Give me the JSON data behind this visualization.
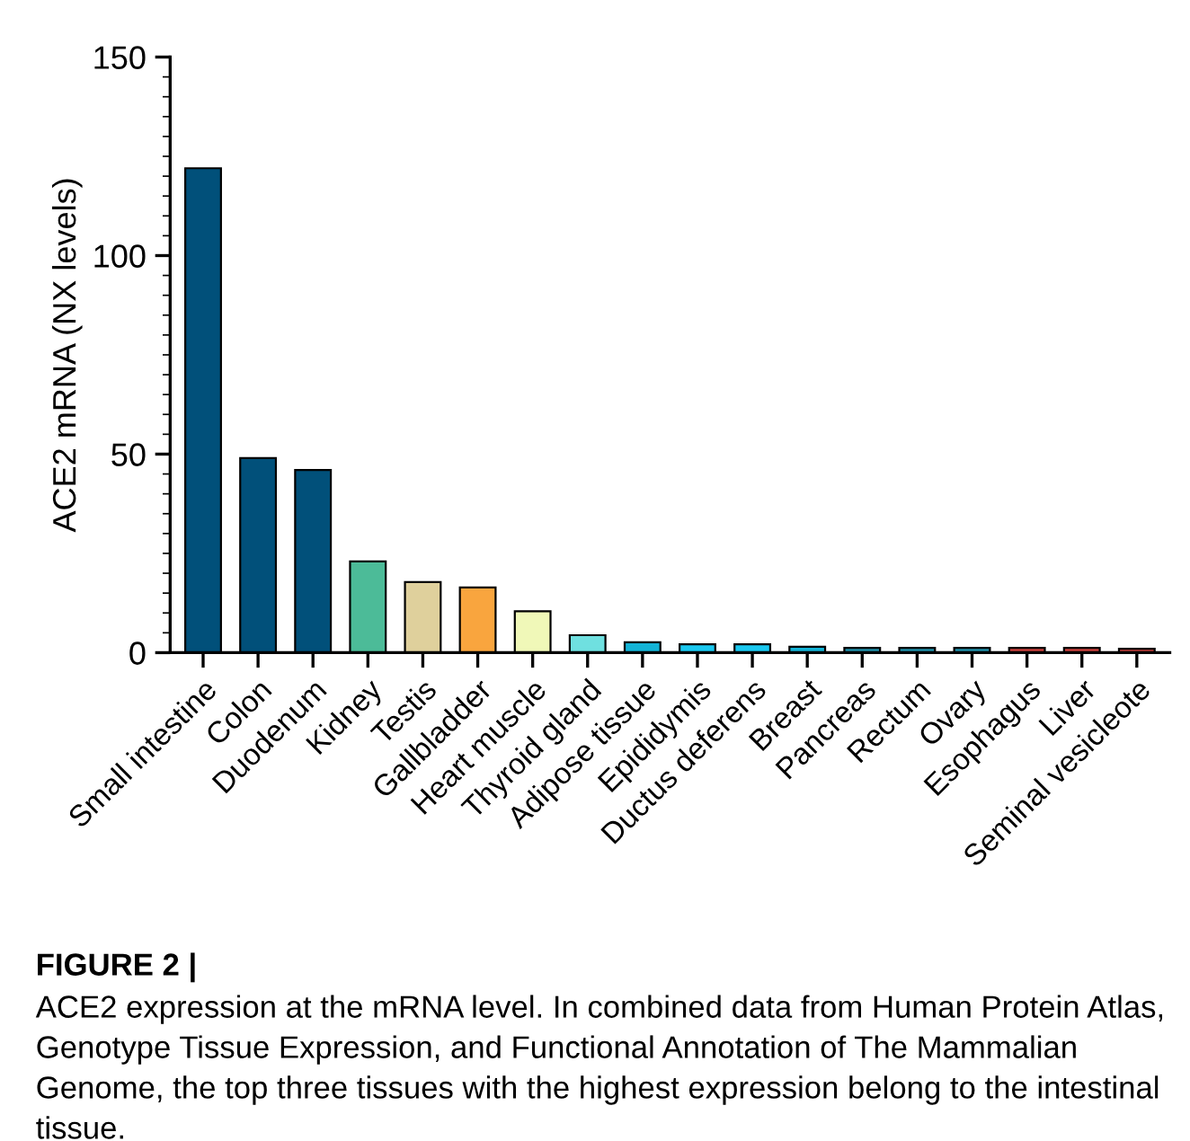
{
  "chart_data": {
    "type": "bar",
    "categories": [
      "Small intestine",
      "Colon",
      "Duodenum",
      "Kidney",
      "Testis",
      "Gallbladder",
      "Heart muscle",
      "Thyroid gland",
      "Adipose tissue",
      "Epididymis",
      "Ductus deferens",
      "Breast",
      "Pancreas",
      "Rectum",
      "Ovary",
      "Esophagus",
      "Liver",
      "Seminal vesicleote"
    ],
    "values": [
      122,
      49,
      46,
      23,
      17.8,
      16.4,
      10.4,
      4.4,
      2.6,
      2.1,
      2.1,
      1.5,
      1.2,
      1.2,
      1.2,
      1.2,
      1.2,
      1.0
    ],
    "colors": [
      "#01507a",
      "#01507a",
      "#01507a",
      "#4cbb98",
      "#dfd09c",
      "#f9a53e",
      "#f0f8b8",
      "#6fe0e0",
      "#13b3d6",
      "#1ac8f0",
      "#1ac8f0",
      "#13b3d6",
      "#1f8fa8",
      "#1f8fa8",
      "#1f8fa8",
      "#c9403c",
      "#c9403c",
      "#c9403c"
    ],
    "ylabel": "ACE2 mRNA (NX levels)",
    "ylim": [
      0,
      150
    ],
    "yticks": [
      0,
      50,
      100,
      150
    ],
    "grid": false,
    "legend": false,
    "annotations": [
      "FIGURE 2 |",
      "ACE2 expression at the mRNA level. In combined data from Human Protein Atlas, Genotype Tissue Expression, and Functional Annotation of The Mammalian Genome, the top three tissues with the highest expression belong to the intestinal tissue."
    ]
  }
}
